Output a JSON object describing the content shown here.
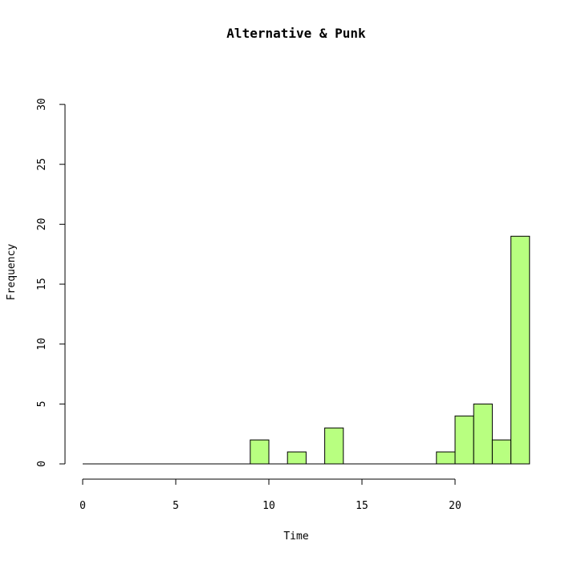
{
  "chart_data": {
    "type": "bar",
    "title": "Alternative & Punk",
    "xlabel": "Time",
    "ylabel": "Frequency",
    "xlim": [
      0,
      24
    ],
    "ylim": [
      0,
      30
    ],
    "x_ticks": [
      0,
      5,
      10,
      15,
      20
    ],
    "y_ticks": [
      0,
      5,
      10,
      15,
      20,
      25,
      30
    ],
    "bins": [
      {
        "start": 0,
        "end": 1,
        "count": 0
      },
      {
        "start": 1,
        "end": 2,
        "count": 0
      },
      {
        "start": 2,
        "end": 3,
        "count": 0
      },
      {
        "start": 3,
        "end": 4,
        "count": 0
      },
      {
        "start": 4,
        "end": 5,
        "count": 0
      },
      {
        "start": 5,
        "end": 6,
        "count": 0
      },
      {
        "start": 6,
        "end": 7,
        "count": 0
      },
      {
        "start": 7,
        "end": 8,
        "count": 0
      },
      {
        "start": 8,
        "end": 9,
        "count": 0
      },
      {
        "start": 9,
        "end": 10,
        "count": 2
      },
      {
        "start": 10,
        "end": 11,
        "count": 0
      },
      {
        "start": 11,
        "end": 12,
        "count": 1
      },
      {
        "start": 12,
        "end": 13,
        "count": 0
      },
      {
        "start": 13,
        "end": 14,
        "count": 3
      },
      {
        "start": 14,
        "end": 15,
        "count": 0
      },
      {
        "start": 15,
        "end": 16,
        "count": 0
      },
      {
        "start": 16,
        "end": 17,
        "count": 0
      },
      {
        "start": 17,
        "end": 18,
        "count": 0
      },
      {
        "start": 18,
        "end": 19,
        "count": 0
      },
      {
        "start": 19,
        "end": 20,
        "count": 1
      },
      {
        "start": 20,
        "end": 21,
        "count": 4
      },
      {
        "start": 21,
        "end": 22,
        "count": 5
      },
      {
        "start": 22,
        "end": 23,
        "count": 2
      },
      {
        "start": 23,
        "end": 24,
        "count": 19
      }
    ],
    "bar_color": "#b8ff80",
    "grid": false
  }
}
